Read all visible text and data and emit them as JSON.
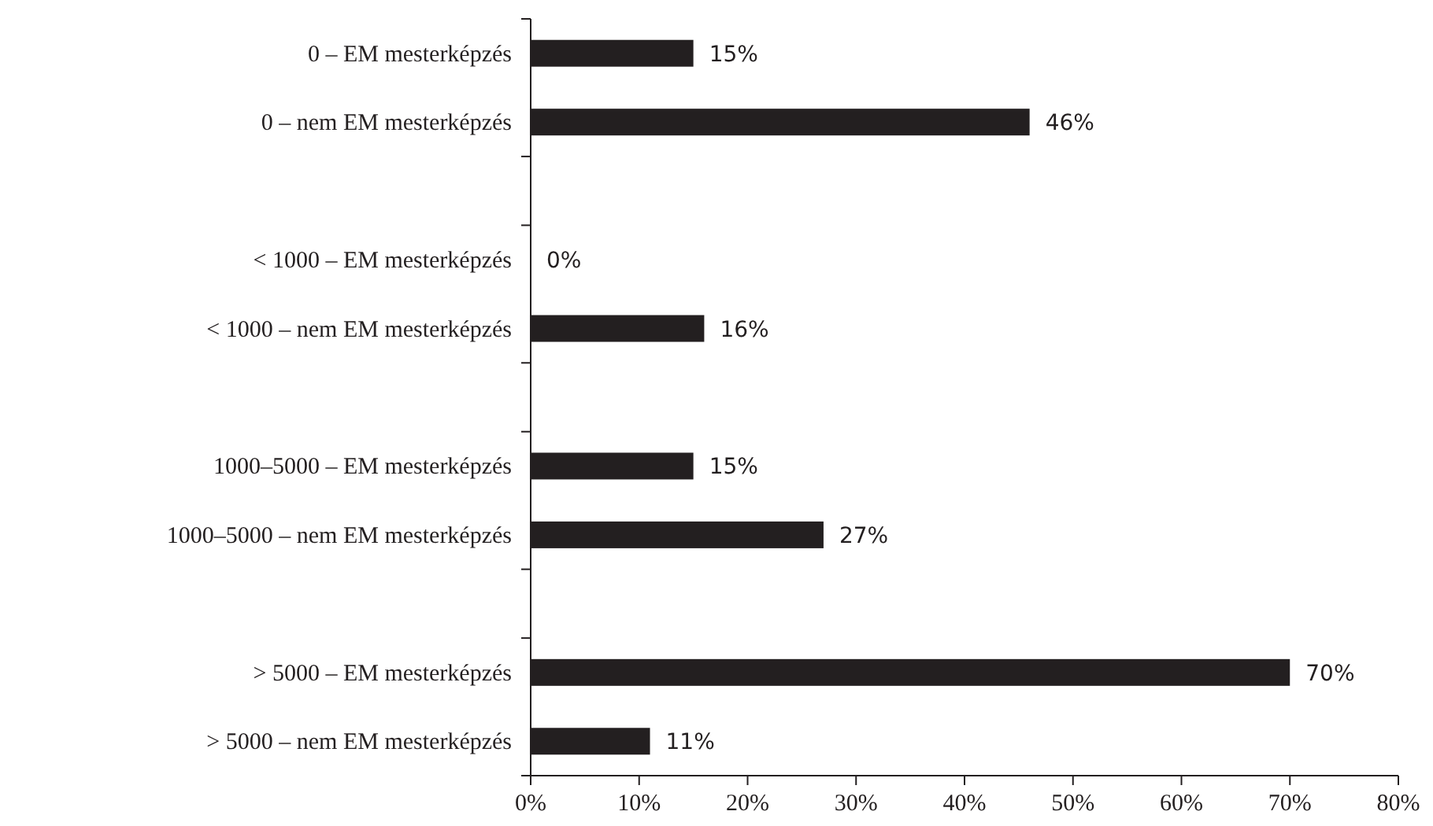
{
  "chart_data": {
    "type": "bar",
    "orientation": "horizontal",
    "categories": [
      "0 – EM mesterképzés",
      "0 – nem EM mesterképzés",
      null,
      "< 1000 – EM mesterképzés",
      "< 1000 – nem EM mesterképzés",
      null,
      "1000–5000 – EM mesterképzés",
      "1000–5000 – nem EM mesterképzés",
      null,
      "> 5000 – EM mesterképzés",
      "> 5000 – nem EM mesterképzés"
    ],
    "values": [
      15,
      46,
      null,
      0,
      16,
      null,
      15,
      27,
      null,
      70,
      11
    ],
    "value_labels": [
      "15%",
      "46%",
      null,
      "0%",
      "16%",
      null,
      "15%",
      "27%",
      null,
      "70%",
      "11%"
    ],
    "color": "#231f20",
    "xlim": [
      0,
      80
    ],
    "xticks": [
      {
        "value": 0,
        "label": "0%"
      },
      {
        "value": 10,
        "label": "10%"
      },
      {
        "value": 20,
        "label": "20%"
      },
      {
        "value": 30,
        "label": "30%"
      },
      {
        "value": 40,
        "label": "40%"
      },
      {
        "value": 50,
        "label": "50%"
      },
      {
        "value": 60,
        "label": "60%"
      },
      {
        "value": 70,
        "label": "70%"
      },
      {
        "value": 80,
        "label": "80%"
      }
    ],
    "grid": false
  }
}
